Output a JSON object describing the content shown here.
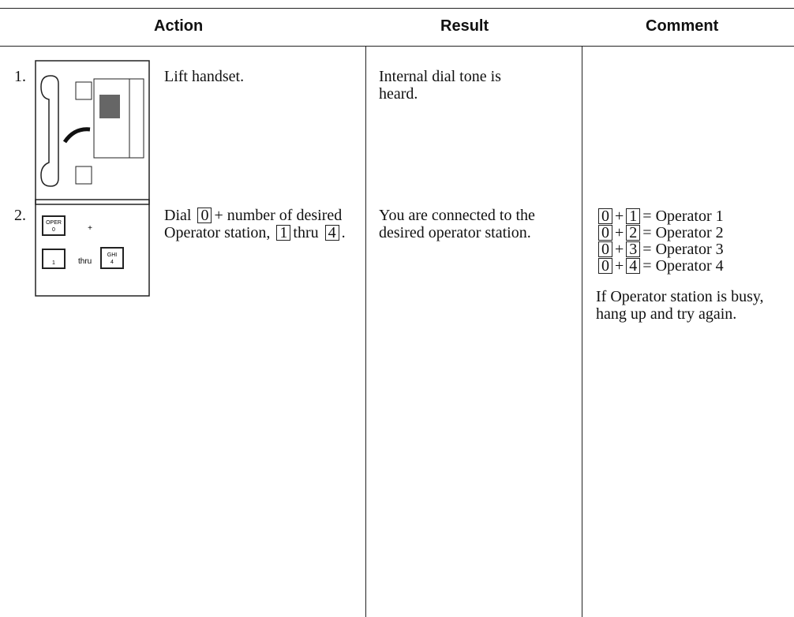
{
  "header": {
    "columns": [
      "Action",
      "Result",
      "Comment"
    ]
  },
  "rows": [
    {
      "number": "1.",
      "action": "Lift handset.",
      "result": "Internal dial tone is heard."
    },
    {
      "number": "2.",
      "action": [
        {
          "text": "Dial"
        },
        {
          "key": "0"
        },
        {
          "text": "+ number of desired Operator station,"
        },
        {
          "key": "1"
        },
        {
          "text": "thru"
        },
        {
          "key": "4"
        },
        {
          "text": "."
        }
      ],
      "image_labels": {
        "key0": "OPER",
        "key0_digit": "0",
        "plus": "+",
        "key1_digit": "1",
        "thru": "thru",
        "key4": "GHI",
        "key4_digit": "4"
      },
      "result": "You are connected to the desired operator station.",
      "comment": {
        "lines": [
          {
            "key1": "0",
            "plus": "+",
            "key2": "1",
            "eq": "=",
            "label": "Operator 1"
          },
          {
            "key1": "0",
            "plus": "+",
            "key2": "2",
            "eq": "=",
            "label": "Operator 2"
          },
          {
            "key1": "0",
            "plus": "+",
            "key2": "3",
            "eq": "=",
            "label": "Operator 3"
          },
          {
            "key1": "0",
            "plus": "+",
            "key2": "4",
            "eq": "=",
            "label": "Operator 4"
          }
        ],
        "note": "If Operator station is busy, hang up and try again."
      }
    }
  ]
}
